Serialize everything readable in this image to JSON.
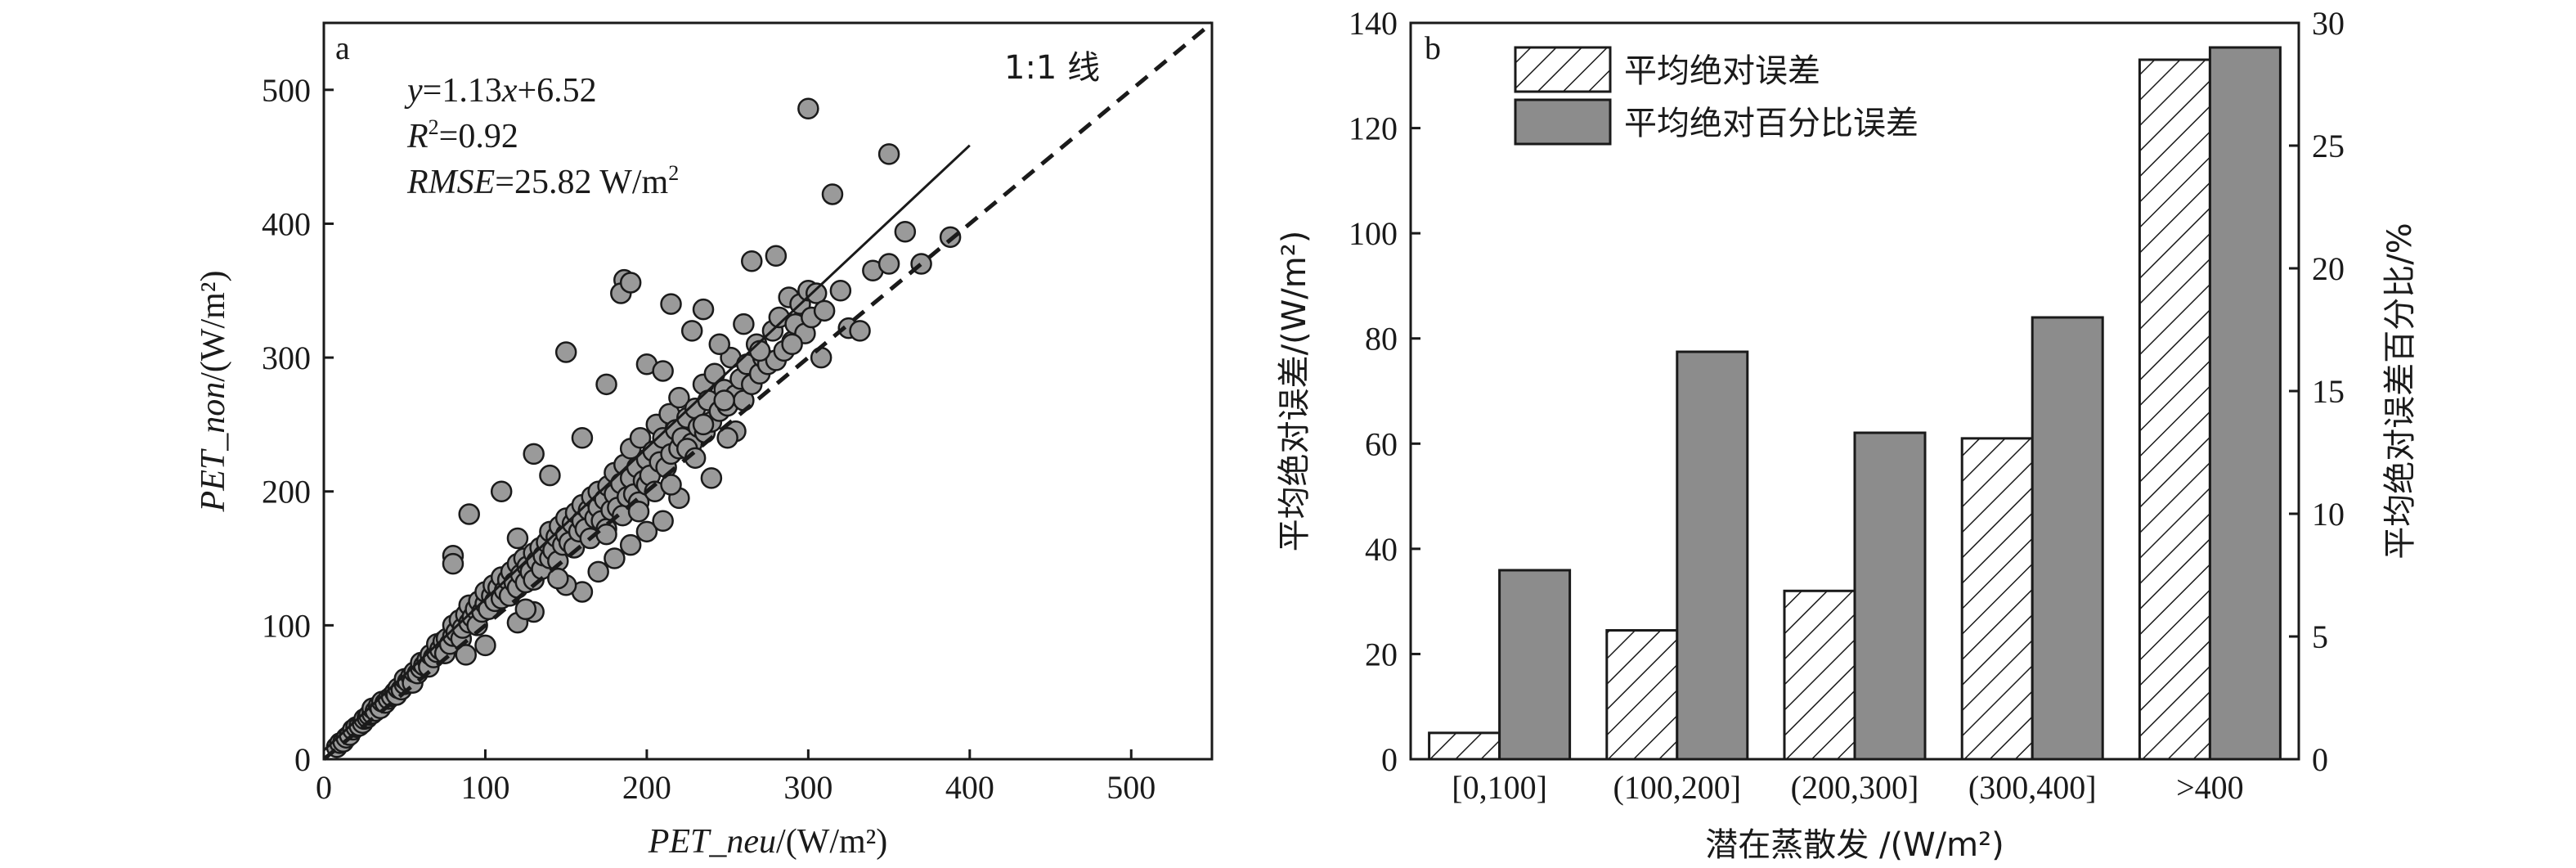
{
  "chart_data": [
    {
      "type": "scatter",
      "panel_label": "a",
      "xlabel_italic": "PET_neu",
      "xlabel_unit": "/(W/m²)",
      "ylabel_italic": "PET_non",
      "ylabel_unit": "/(W/m²)",
      "xlim": [
        0,
        550
      ],
      "ylim": [
        0,
        550
      ],
      "xticks": [
        0,
        100,
        200,
        300,
        400,
        500
      ],
      "yticks": [
        0,
        100,
        200,
        300,
        400,
        500
      ],
      "equation": {
        "lhs": "y",
        "mid": "=1.13",
        "var": "x",
        "rest": "+6.52"
      },
      "r2": {
        "sym": "R",
        "sup": "2",
        "val": "=0.92"
      },
      "rmse": {
        "label": "RMSE",
        "val": "=25.82 W/m",
        "sup": "2"
      },
      "fit": {
        "slope": 1.13,
        "intercept": 6.52,
        "x_end": 400
      },
      "one_to_one_label": "1:1 线",
      "marker_color": "#9a9a9a",
      "points": [
        [
          8,
          9
        ],
        [
          10,
          12
        ],
        [
          12,
          13
        ],
        [
          14,
          16
        ],
        [
          16,
          18
        ],
        [
          18,
          22
        ],
        [
          20,
          24
        ],
        [
          22,
          25
        ],
        [
          24,
          27
        ],
        [
          25,
          30
        ],
        [
          27,
          31
        ],
        [
          28,
          33
        ],
        [
          30,
          34
        ],
        [
          30,
          38
        ],
        [
          32,
          36
        ],
        [
          34,
          40
        ],
        [
          35,
          38
        ],
        [
          36,
          43
        ],
        [
          38,
          42
        ],
        [
          40,
          45
        ],
        [
          42,
          47
        ],
        [
          44,
          50
        ],
        [
          45,
          48
        ],
        [
          46,
          53
        ],
        [
          48,
          52
        ],
        [
          50,
          56
        ],
        [
          50,
          60
        ],
        [
          52,
          58
        ],
        [
          54,
          62
        ],
        [
          55,
          57
        ],
        [
          56,
          65
        ],
        [
          58,
          64
        ],
        [
          60,
          68
        ],
        [
          60,
          72
        ],
        [
          62,
          70
        ],
        [
          64,
          74
        ],
        [
          65,
          69
        ],
        [
          66,
          78
        ],
        [
          68,
          76
        ],
        [
          70,
          80
        ],
        [
          70,
          86
        ],
        [
          72,
          82
        ],
        [
          74,
          88
        ],
        [
          75,
          79
        ],
        [
          76,
          90
        ],
        [
          78,
          86
        ],
        [
          80,
          92
        ],
        [
          80,
          100
        ],
        [
          82,
          95
        ],
        [
          84,
          104
        ],
        [
          85,
          90
        ],
        [
          86,
          98
        ],
        [
          88,
          108
        ],
        [
          90,
          102
        ],
        [
          90,
          115
        ],
        [
          92,
          106
        ],
        [
          94,
          112
        ],
        [
          95,
          100
        ],
        [
          96,
          118
        ],
        [
          98,
          110
        ],
        [
          100,
          116
        ],
        [
          100,
          125
        ],
        [
          102,
          112
        ],
        [
          104,
          122
        ],
        [
          105,
          130
        ],
        [
          106,
          118
        ],
        [
          108,
          128
        ],
        [
          110,
          120
        ],
        [
          110,
          136
        ],
        [
          112,
          126
        ],
        [
          114,
          134
        ],
        [
          115,
          122
        ],
        [
          116,
          140
        ],
        [
          118,
          132
        ],
        [
          120,
          128
        ],
        [
          120,
          146
        ],
        [
          122,
          138
        ],
        [
          124,
          150
        ],
        [
          125,
          132
        ],
        [
          126,
          144
        ],
        [
          128,
          140
        ],
        [
          130,
          154
        ],
        [
          130,
          134
        ],
        [
          132,
          148
        ],
        [
          134,
          158
        ],
        [
          135,
          142
        ],
        [
          136,
          152
        ],
        [
          138,
          162
        ],
        [
          140,
          150
        ],
        [
          140,
          170
        ],
        [
          142,
          156
        ],
        [
          144,
          166
        ],
        [
          145,
          148
        ],
        [
          146,
          174
        ],
        [
          148,
          160
        ],
        [
          150,
          168
        ],
        [
          150,
          180
        ],
        [
          152,
          162
        ],
        [
          154,
          176
        ],
        [
          155,
          158
        ],
        [
          156,
          184
        ],
        [
          158,
          170
        ],
        [
          160,
          178
        ],
        [
          160,
          190
        ],
        [
          162,
          172
        ],
        [
          164,
          186
        ],
        [
          165,
          165
        ],
        [
          166,
          196
        ],
        [
          168,
          180
        ],
        [
          170,
          188
        ],
        [
          170,
          200
        ],
        [
          172,
          178
        ],
        [
          174,
          194
        ],
        [
          175,
          172
        ],
        [
          176,
          204
        ],
        [
          178,
          186
        ],
        [
          180,
          198
        ],
        [
          180,
          214
        ],
        [
          182,
          188
        ],
        [
          184,
          206
        ],
        [
          185,
          182
        ],
        [
          186,
          220
        ],
        [
          188,
          196
        ],
        [
          190,
          210
        ],
        [
          190,
          232
        ],
        [
          192,
          198
        ],
        [
          194,
          218
        ],
        [
          195,
          192
        ],
        [
          196,
          240
        ],
        [
          198,
          208
        ],
        [
          200,
          224
        ],
        [
          200,
          205
        ],
        [
          202,
          212
        ],
        [
          204,
          230
        ],
        [
          205,
          200
        ],
        [
          206,
          250
        ],
        [
          208,
          222
        ],
        [
          210,
          240
        ],
        [
          212,
          218
        ],
        [
          214,
          258
        ],
        [
          215,
          228
        ],
        [
          218,
          246
        ],
        [
          220,
          232
        ],
        [
          220,
          270
        ],
        [
          222,
          240
        ],
        [
          225,
          255
        ],
        [
          228,
          236
        ],
        [
          230,
          262
        ],
        [
          232,
          248
        ],
        [
          235,
          280
        ],
        [
          236,
          244
        ],
        [
          238,
          268
        ],
        [
          240,
          252
        ],
        [
          242,
          288
        ],
        [
          245,
          260
        ],
        [
          248,
          276
        ],
        [
          250,
          264
        ],
        [
          252,
          300
        ],
        [
          255,
          272
        ],
        [
          258,
          284
        ],
        [
          260,
          268
        ],
        [
          262,
          295
        ],
        [
          265,
          280
        ],
        [
          268,
          310
        ],
        [
          270,
          288
        ],
        [
          272,
          300
        ],
        [
          275,
          295
        ],
        [
          278,
          320
        ],
        [
          280,
          298
        ],
        [
          282,
          330
        ],
        [
          285,
          305
        ],
        [
          288,
          345
        ],
        [
          290,
          312
        ],
        [
          292,
          325
        ],
        [
          295,
          340
        ],
        [
          298,
          318
        ],
        [
          300,
          350
        ],
        [
          302,
          330
        ],
        [
          305,
          348
        ],
        [
          310,
          335
        ],
        [
          90,
          183
        ],
        [
          80,
          152
        ],
        [
          80,
          146
        ],
        [
          150,
          304
        ],
        [
          186,
          358
        ],
        [
          184,
          348
        ],
        [
          190,
          356
        ],
        [
          215,
          340
        ],
        [
          235,
          336
        ],
        [
          245,
          310
        ],
        [
          130,
          228
        ],
        [
          160,
          240
        ],
        [
          140,
          212
        ],
        [
          110,
          200
        ],
        [
          175,
          280
        ],
        [
          120,
          165
        ],
        [
          200,
          295
        ],
        [
          210,
          290
        ],
        [
          228,
          320
        ],
        [
          260,
          325
        ],
        [
          265,
          372
        ],
        [
          280,
          376
        ],
        [
          300,
          486
        ],
        [
          350,
          452
        ],
        [
          315,
          422
        ],
        [
          340,
          365
        ],
        [
          350,
          370
        ],
        [
          360,
          394
        ],
        [
          370,
          370
        ],
        [
          388,
          390
        ],
        [
          325,
          322
        ],
        [
          320,
          350
        ],
        [
          332,
          320
        ],
        [
          308,
          300
        ],
        [
          290,
          310
        ],
        [
          270,
          305
        ],
        [
          248,
          268
        ],
        [
          225,
          232
        ],
        [
          235,
          250
        ],
        [
          255,
          245
        ],
        [
          160,
          125
        ],
        [
          180,
          150
        ],
        [
          200,
          170
        ],
        [
          210,
          178
        ],
        [
          220,
          195
        ],
        [
          240,
          210
        ],
        [
          190,
          160
        ],
        [
          170,
          140
        ],
        [
          150,
          130
        ],
        [
          130,
          110
        ],
        [
          120,
          102
        ],
        [
          100,
          85
        ],
        [
          88,
          78
        ],
        [
          125,
          112
        ],
        [
          145,
          135
        ],
        [
          175,
          168
        ],
        [
          230,
          225
        ],
        [
          250,
          240
        ],
        [
          195,
          185
        ],
        [
          215,
          205
        ]
      ]
    },
    {
      "type": "bar",
      "panel_label": "b",
      "categories": [
        "[0,100]",
        "(100,200]",
        "(200,300]",
        "(300,400]",
        ">400"
      ],
      "xlabel": "潜在蒸散发 /(W/m²)",
      "ylabel": "平均绝对误差/(W/m²)",
      "y2label": "平均绝对误差百分比/%",
      "ylim": [
        0,
        140
      ],
      "y2lim": [
        0,
        30
      ],
      "yticks": [
        0,
        20,
        40,
        60,
        80,
        100,
        120,
        140
      ],
      "y2ticks": [
        0,
        5,
        10,
        15,
        20,
        25,
        30
      ],
      "legend_position": "top-left",
      "series": [
        {
          "name": "平均绝对误差",
          "axis": "left",
          "pattern": "hatch",
          "values": [
            5,
            24.5,
            32,
            61,
            133
          ]
        },
        {
          "name": "平均绝对百分比误差",
          "axis": "right",
          "pattern": "solid",
          "color": "#8c8c8c",
          "values": [
            7.7,
            16.6,
            13.3,
            18,
            29
          ]
        }
      ]
    }
  ]
}
